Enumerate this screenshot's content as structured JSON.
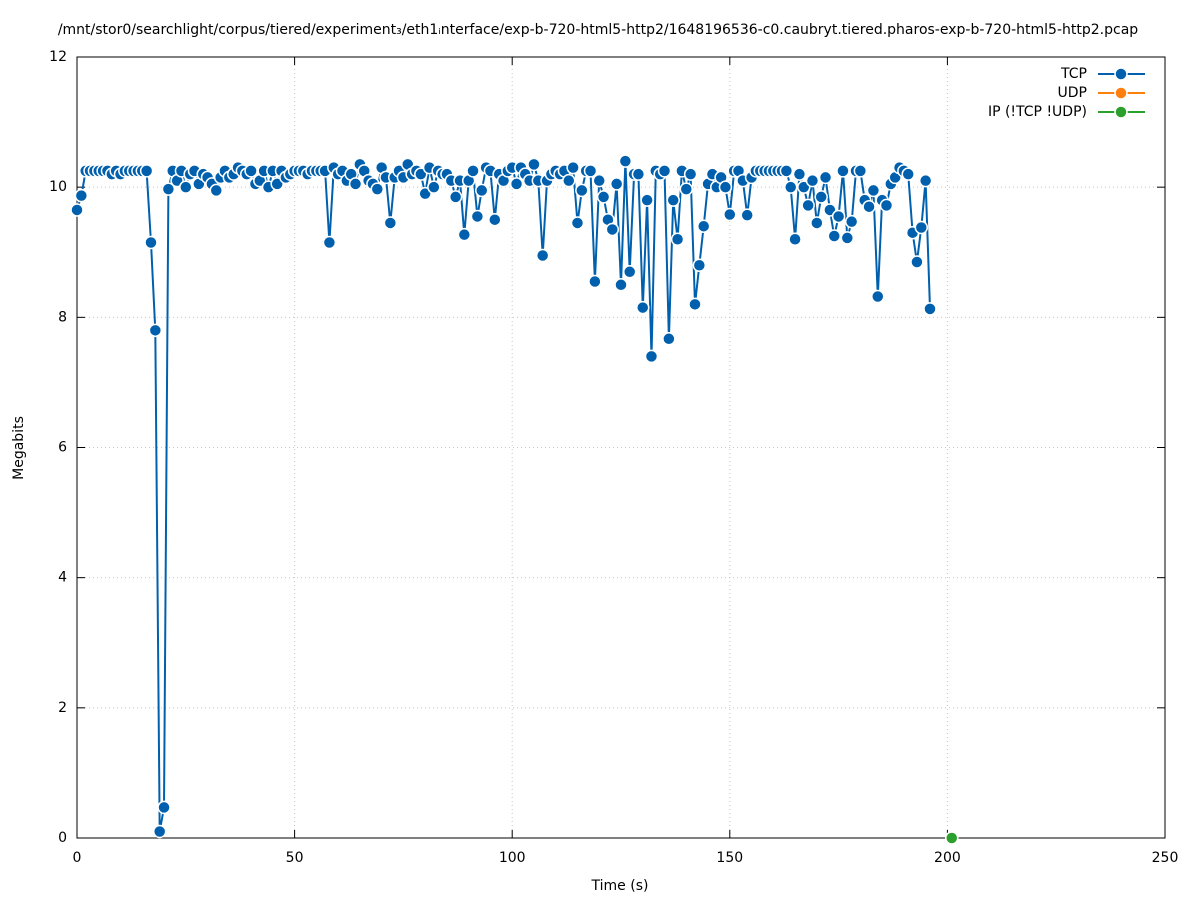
{
  "chart_data": {
    "type": "line",
    "title": "/mnt/stor0/searchlight/corpus/tiered/experiment₃/eth1ᵢnterface/exp-b-720-html5-http2/1648196536-c0.caubryt.tiered.pharos-exp-b-720-html5-http2.pcap",
    "xlabel": "Time (s)",
    "ylabel": "Megabits",
    "xlim": [
      0,
      250
    ],
    "xticks": [
      0,
      50,
      100,
      150,
      200,
      250
    ],
    "ylim": [
      0,
      12
    ],
    "yticks": [
      0,
      2,
      4,
      6,
      8,
      10,
      12
    ],
    "grid": true,
    "legend": "top-right",
    "series": [
      {
        "name": "TCP",
        "color": "#0060ad",
        "x": [
          0,
          1,
          2,
          3,
          4,
          5,
          6,
          7,
          8,
          9,
          10,
          11,
          12,
          13,
          14,
          15,
          16,
          17,
          18,
          19,
          20,
          21,
          22,
          23,
          24,
          25,
          26,
          27,
          28,
          29,
          30,
          31,
          32,
          33,
          34,
          35,
          36,
          37,
          38,
          39,
          40,
          41,
          42,
          43,
          44,
          45,
          46,
          47,
          48,
          49,
          50,
          51,
          52,
          53,
          54,
          55,
          56,
          57,
          58,
          59,
          60,
          61,
          62,
          63,
          64,
          65,
          66,
          67,
          68,
          69,
          70,
          71,
          72,
          73,
          74,
          75,
          76,
          77,
          78,
          79,
          80,
          81,
          82,
          83,
          84,
          85,
          86,
          87,
          88,
          89,
          90,
          91,
          92,
          93,
          94,
          95,
          96,
          97,
          98,
          99,
          100,
          101,
          102,
          103,
          104,
          105,
          106,
          107,
          108,
          109,
          110,
          111,
          112,
          113,
          114,
          115,
          116,
          117,
          118,
          119,
          120,
          121,
          122,
          123,
          124,
          125,
          126,
          127,
          128,
          129,
          130,
          131,
          132,
          133,
          134,
          135,
          136,
          137,
          138,
          139,
          140,
          141,
          142,
          143,
          144,
          145,
          146,
          147,
          148,
          149,
          150,
          151,
          152,
          153,
          154,
          155,
          156,
          157,
          158,
          159,
          160,
          161,
          162,
          163,
          164,
          165,
          166,
          167,
          168,
          169,
          170,
          171,
          172,
          173,
          174,
          175,
          176,
          177,
          178,
          179,
          180,
          181,
          182,
          183,
          184,
          185,
          186,
          187,
          188,
          189,
          190,
          191,
          192,
          193,
          194,
          195,
          196
        ],
        "values": [
          9.65,
          9.87,
          10.25,
          10.25,
          10.25,
          10.25,
          10.25,
          10.25,
          10.2,
          10.25,
          10.2,
          10.25,
          10.25,
          10.25,
          10.25,
          10.25,
          10.25,
          9.15,
          7.8,
          0.1,
          0.47,
          9.97,
          10.25,
          10.1,
          10.25,
          10.0,
          10.2,
          10.25,
          10.05,
          10.2,
          10.15,
          10.05,
          9.95,
          10.15,
          10.25,
          10.15,
          10.2,
          10.3,
          10.25,
          10.2,
          10.25,
          10.05,
          10.1,
          10.25,
          10.0,
          10.25,
          10.05,
          10.25,
          10.15,
          10.2,
          10.25,
          10.25,
          10.25,
          10.2,
          10.25,
          10.25,
          10.25,
          10.25,
          9.15,
          10.3,
          10.2,
          10.25,
          10.1,
          10.2,
          10.05,
          10.35,
          10.25,
          10.1,
          10.05,
          9.97,
          10.3,
          10.15,
          9.45,
          10.15,
          10.25,
          10.15,
          10.35,
          10.2,
          10.25,
          10.2,
          9.9,
          10.3,
          10.0,
          10.25,
          10.2,
          10.2,
          10.1,
          9.85,
          10.1,
          9.27,
          10.1,
          10.25,
          9.55,
          9.95,
          10.3,
          10.25,
          9.5,
          10.2,
          10.1,
          10.25,
          10.3,
          10.05,
          10.3,
          10.2,
          10.1,
          10.35,
          10.1,
          8.95,
          10.1,
          10.2,
          10.25,
          10.2,
          10.25,
          10.1,
          10.3,
          9.45,
          9.95,
          10.25,
          10.25,
          8.55,
          10.1,
          9.85,
          9.5,
          9.35,
          10.05,
          8.5,
          10.4,
          8.7,
          10.2,
          10.2,
          8.15,
          9.8,
          7.4,
          10.25,
          10.2,
          10.25,
          7.67,
          9.8,
          9.2,
          10.25,
          9.97,
          10.2,
          8.2,
          8.8,
          9.4,
          10.05,
          10.2,
          10.0,
          10.15,
          10.0,
          9.58,
          10.25,
          10.25,
          10.1,
          9.57,
          10.15,
          10.25,
          10.25,
          10.25,
          10.25,
          10.25,
          10.25,
          10.25,
          10.25,
          10.0,
          9.2,
          10.2,
          10.0,
          9.72,
          10.1,
          9.45,
          9.85,
          10.15,
          9.65,
          9.25,
          9.55,
          10.25,
          9.22,
          9.47,
          10.25,
          10.25,
          9.8,
          9.7,
          9.95,
          8.32,
          9.8,
          9.72,
          10.05,
          10.15,
          10.3,
          10.25,
          10.2,
          9.3,
          8.85,
          9.38,
          10.1,
          8.13
        ]
      },
      {
        "name": "UDP",
        "color": "#ff7f0e",
        "x": [
          201
        ],
        "values": [
          0
        ]
      },
      {
        "name": "IP (!TCP  !UDP)",
        "color": "#2ca02c",
        "x": [
          201
        ],
        "values": [
          0
        ]
      }
    ]
  }
}
